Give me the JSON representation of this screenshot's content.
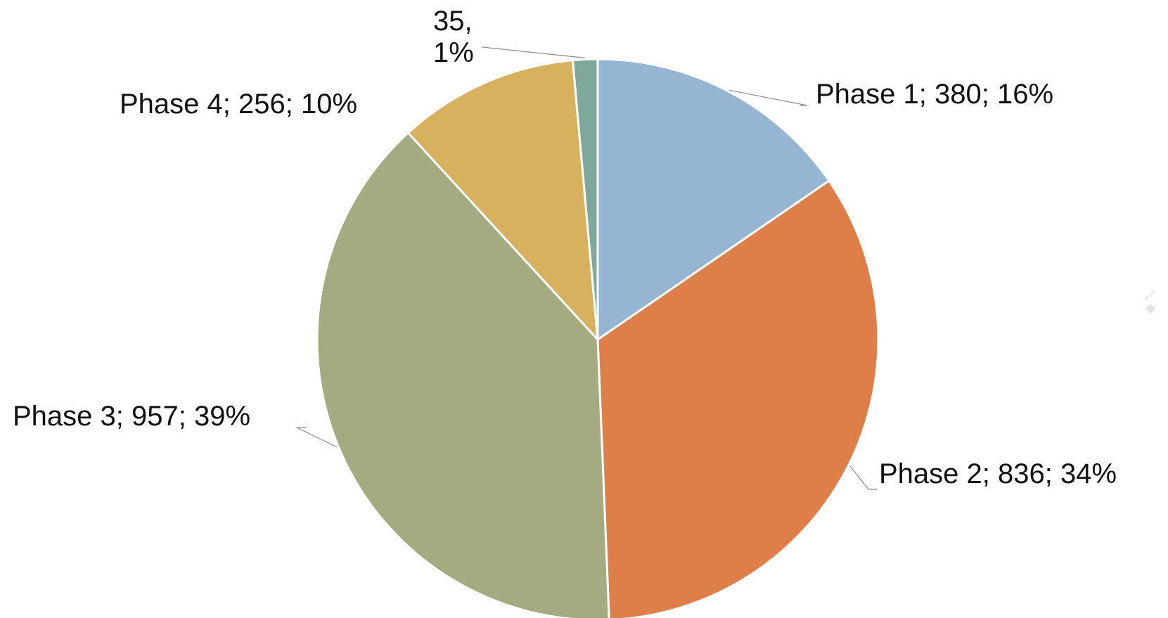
{
  "chart_data": {
    "type": "pie",
    "title": "",
    "slices": [
      {
        "label": "Phase 1",
        "value": 380,
        "percent": "16%",
        "color": "#95b5d3",
        "text": "Phase 1; 380; 16%"
      },
      {
        "label": "Phase 2",
        "value": 836,
        "percent": "34%",
        "color": "#de7f49",
        "text": "Phase 2; 836; 34%"
      },
      {
        "label": "Phase 3",
        "value": 957,
        "percent": "39%",
        "color": "#a5ab80",
        "text": "Phase 3; 957; 39%"
      },
      {
        "label": "Phase 4",
        "value": 256,
        "percent": "10%",
        "color": "#d8b15f",
        "text": "Phase 4; 256; 10%"
      },
      {
        "label": "",
        "value": 35,
        "percent": "1%",
        "color": "#7ea89c",
        "text_line1": "35,",
        "text_line2": "1%"
      }
    ],
    "start_angle_deg": 0,
    "direction": "clockwise",
    "legend": "none"
  }
}
